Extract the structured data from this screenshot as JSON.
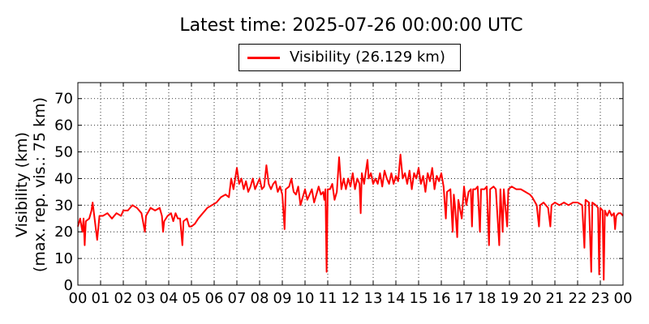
{
  "title": "Latest time: 2025-07-26 00:00:00 UTC",
  "legend": {
    "label": "Visibility (26.129 km)",
    "color": "#ff0000"
  },
  "ylabel": {
    "line1": "Visibility (km)",
    "line2": "(max. rep. vis.: 75 km)"
  },
  "chart_data": {
    "type": "line",
    "title": "Latest time: 2025-07-26 00:00:00 UTC",
    "xlabel": "",
    "ylabel": "Visibility (km)",
    "xlim": [
      0,
      24
    ],
    "ylim": [
      0,
      76
    ],
    "x_ticks": [
      "00",
      "01",
      "02",
      "03",
      "04",
      "05",
      "06",
      "07",
      "08",
      "09",
      "10",
      "11",
      "12",
      "13",
      "14",
      "15",
      "16",
      "17",
      "18",
      "19",
      "20",
      "21",
      "22",
      "23",
      "00"
    ],
    "y_ticks": [
      0,
      10,
      20,
      30,
      40,
      50,
      60,
      70
    ],
    "grid": true,
    "legend_position": "top",
    "series": [
      {
        "name": "Visibility (26.129 km)",
        "color": "#ff0000",
        "points": [
          [
            0.0,
            22
          ],
          [
            0.1,
            25
          ],
          [
            0.2,
            20
          ],
          [
            0.25,
            25
          ],
          [
            0.3,
            15
          ],
          [
            0.35,
            24
          ],
          [
            0.5,
            25
          ],
          [
            0.6,
            28
          ],
          [
            0.65,
            31
          ],
          [
            0.75,
            24
          ],
          [
            0.85,
            17
          ],
          [
            0.95,
            26
          ],
          [
            1.1,
            26
          ],
          [
            1.3,
            27
          ],
          [
            1.5,
            25
          ],
          [
            1.7,
            27
          ],
          [
            1.9,
            26
          ],
          [
            2.0,
            28
          ],
          [
            2.2,
            28
          ],
          [
            2.4,
            30
          ],
          [
            2.6,
            29
          ],
          [
            2.8,
            27
          ],
          [
            2.95,
            20
          ],
          [
            3.0,
            26
          ],
          [
            3.2,
            29
          ],
          [
            3.4,
            28
          ],
          [
            3.6,
            29
          ],
          [
            3.7,
            26
          ],
          [
            3.75,
            20
          ],
          [
            3.8,
            24
          ],
          [
            3.95,
            26
          ],
          [
            4.1,
            27
          ],
          [
            4.2,
            24
          ],
          [
            4.3,
            27
          ],
          [
            4.4,
            25
          ],
          [
            4.5,
            25
          ],
          [
            4.6,
            15
          ],
          [
            4.65,
            24
          ],
          [
            4.8,
            25
          ],
          [
            4.9,
            22
          ],
          [
            5.0,
            22
          ],
          [
            5.15,
            23
          ],
          [
            5.3,
            25
          ],
          [
            5.5,
            27
          ],
          [
            5.7,
            29
          ],
          [
            5.9,
            30
          ],
          [
            6.1,
            31
          ],
          [
            6.3,
            33
          ],
          [
            6.5,
            34
          ],
          [
            6.65,
            33
          ],
          [
            6.75,
            40
          ],
          [
            6.85,
            36
          ],
          [
            7.0,
            44
          ],
          [
            7.1,
            38
          ],
          [
            7.2,
            40
          ],
          [
            7.3,
            36
          ],
          [
            7.4,
            39
          ],
          [
            7.5,
            35
          ],
          [
            7.6,
            37
          ],
          [
            7.7,
            40
          ],
          [
            7.8,
            36
          ],
          [
            7.9,
            38
          ],
          [
            8.0,
            40
          ],
          [
            8.1,
            36
          ],
          [
            8.2,
            37
          ],
          [
            8.3,
            45
          ],
          [
            8.4,
            38
          ],
          [
            8.5,
            36
          ],
          [
            8.6,
            38
          ],
          [
            8.7,
            39
          ],
          [
            8.8,
            35
          ],
          [
            8.9,
            37
          ],
          [
            9.0,
            34
          ],
          [
            9.1,
            21
          ],
          [
            9.15,
            36
          ],
          [
            9.3,
            37
          ],
          [
            9.4,
            40
          ],
          [
            9.5,
            35
          ],
          [
            9.6,
            34
          ],
          [
            9.7,
            37
          ],
          [
            9.8,
            30
          ],
          [
            9.9,
            33
          ],
          [
            10.0,
            36
          ],
          [
            10.1,
            32
          ],
          [
            10.2,
            34
          ],
          [
            10.3,
            36
          ],
          [
            10.4,
            31
          ],
          [
            10.5,
            34
          ],
          [
            10.6,
            37
          ],
          [
            10.7,
            34
          ],
          [
            10.8,
            35
          ],
          [
            10.85,
            32
          ],
          [
            10.9,
            36
          ],
          [
            10.95,
            5
          ],
          [
            11.0,
            36
          ],
          [
            11.1,
            36
          ],
          [
            11.2,
            38
          ],
          [
            11.3,
            32
          ],
          [
            11.4,
            35
          ],
          [
            11.5,
            48
          ],
          [
            11.6,
            36
          ],
          [
            11.7,
            40
          ],
          [
            11.8,
            36
          ],
          [
            11.9,
            40
          ],
          [
            12.0,
            37
          ],
          [
            12.1,
            42
          ],
          [
            12.2,
            36
          ],
          [
            12.3,
            40
          ],
          [
            12.4,
            38
          ],
          [
            12.45,
            27
          ],
          [
            12.5,
            42
          ],
          [
            12.6,
            38
          ],
          [
            12.7,
            44
          ],
          [
            12.75,
            47
          ],
          [
            12.8,
            40
          ],
          [
            12.9,
            42
          ],
          [
            13.0,
            38
          ],
          [
            13.1,
            40
          ],
          [
            13.2,
            38
          ],
          [
            13.3,
            42
          ],
          [
            13.4,
            37
          ],
          [
            13.5,
            43
          ],
          [
            13.6,
            40
          ],
          [
            13.7,
            38
          ],
          [
            13.8,
            42
          ],
          [
            13.9,
            38
          ],
          [
            14.0,
            41
          ],
          [
            14.1,
            39
          ],
          [
            14.2,
            49
          ],
          [
            14.3,
            40
          ],
          [
            14.4,
            42
          ],
          [
            14.5,
            38
          ],
          [
            14.6,
            43
          ],
          [
            14.7,
            36
          ],
          [
            14.8,
            42
          ],
          [
            14.9,
            40
          ],
          [
            15.0,
            44
          ],
          [
            15.1,
            38
          ],
          [
            15.2,
            41
          ],
          [
            15.3,
            35
          ],
          [
            15.4,
            42
          ],
          [
            15.5,
            39
          ],
          [
            15.6,
            44
          ],
          [
            15.7,
            36
          ],
          [
            15.8,
            41
          ],
          [
            15.9,
            39
          ],
          [
            16.0,
            42
          ],
          [
            16.1,
            37
          ],
          [
            16.2,
            25
          ],
          [
            16.25,
            35
          ],
          [
            16.4,
            36
          ],
          [
            16.5,
            20
          ],
          [
            16.55,
            34
          ],
          [
            16.6,
            30
          ],
          [
            16.7,
            18
          ],
          [
            16.75,
            32
          ],
          [
            16.9,
            25
          ],
          [
            17.0,
            37
          ],
          [
            17.1,
            30
          ],
          [
            17.2,
            35
          ],
          [
            17.3,
            36
          ],
          [
            17.35,
            22
          ],
          [
            17.4,
            36
          ],
          [
            17.5,
            36
          ],
          [
            17.6,
            37
          ],
          [
            17.7,
            20
          ],
          [
            17.75,
            36
          ],
          [
            17.9,
            36
          ],
          [
            18.0,
            37
          ],
          [
            18.1,
            15
          ],
          [
            18.15,
            36
          ],
          [
            18.3,
            37
          ],
          [
            18.4,
            36
          ],
          [
            18.55,
            15
          ],
          [
            18.6,
            36
          ],
          [
            18.7,
            20
          ],
          [
            18.75,
            36
          ],
          [
            18.9,
            22
          ],
          [
            18.95,
            36
          ],
          [
            19.1,
            37
          ],
          [
            19.3,
            36
          ],
          [
            19.5,
            36
          ],
          [
            19.7,
            35
          ],
          [
            19.9,
            34
          ],
          [
            20.0,
            33
          ],
          [
            20.2,
            30
          ],
          [
            20.3,
            22
          ],
          [
            20.35,
            30
          ],
          [
            20.5,
            31
          ],
          [
            20.6,
            30
          ],
          [
            20.7,
            29
          ],
          [
            20.8,
            22
          ],
          [
            20.85,
            30
          ],
          [
            21.0,
            31
          ],
          [
            21.2,
            30
          ],
          [
            21.4,
            31
          ],
          [
            21.6,
            30
          ],
          [
            21.8,
            31
          ],
          [
            22.0,
            31
          ],
          [
            22.2,
            30
          ],
          [
            22.3,
            14
          ],
          [
            22.35,
            32
          ],
          [
            22.5,
            31
          ],
          [
            22.6,
            5
          ],
          [
            22.65,
            31
          ],
          [
            22.8,
            30
          ],
          [
            22.9,
            29
          ],
          [
            22.95,
            4
          ],
          [
            23.0,
            29
          ],
          [
            23.1,
            28
          ],
          [
            23.15,
            2
          ],
          [
            23.2,
            28
          ],
          [
            23.3,
            26
          ],
          [
            23.4,
            28
          ],
          [
            23.5,
            26
          ],
          [
            23.6,
            27
          ],
          [
            23.65,
            21
          ],
          [
            23.7,
            26
          ],
          [
            23.8,
            27
          ],
          [
            23.9,
            27
          ],
          [
            24.0,
            26
          ]
        ]
      }
    ]
  }
}
